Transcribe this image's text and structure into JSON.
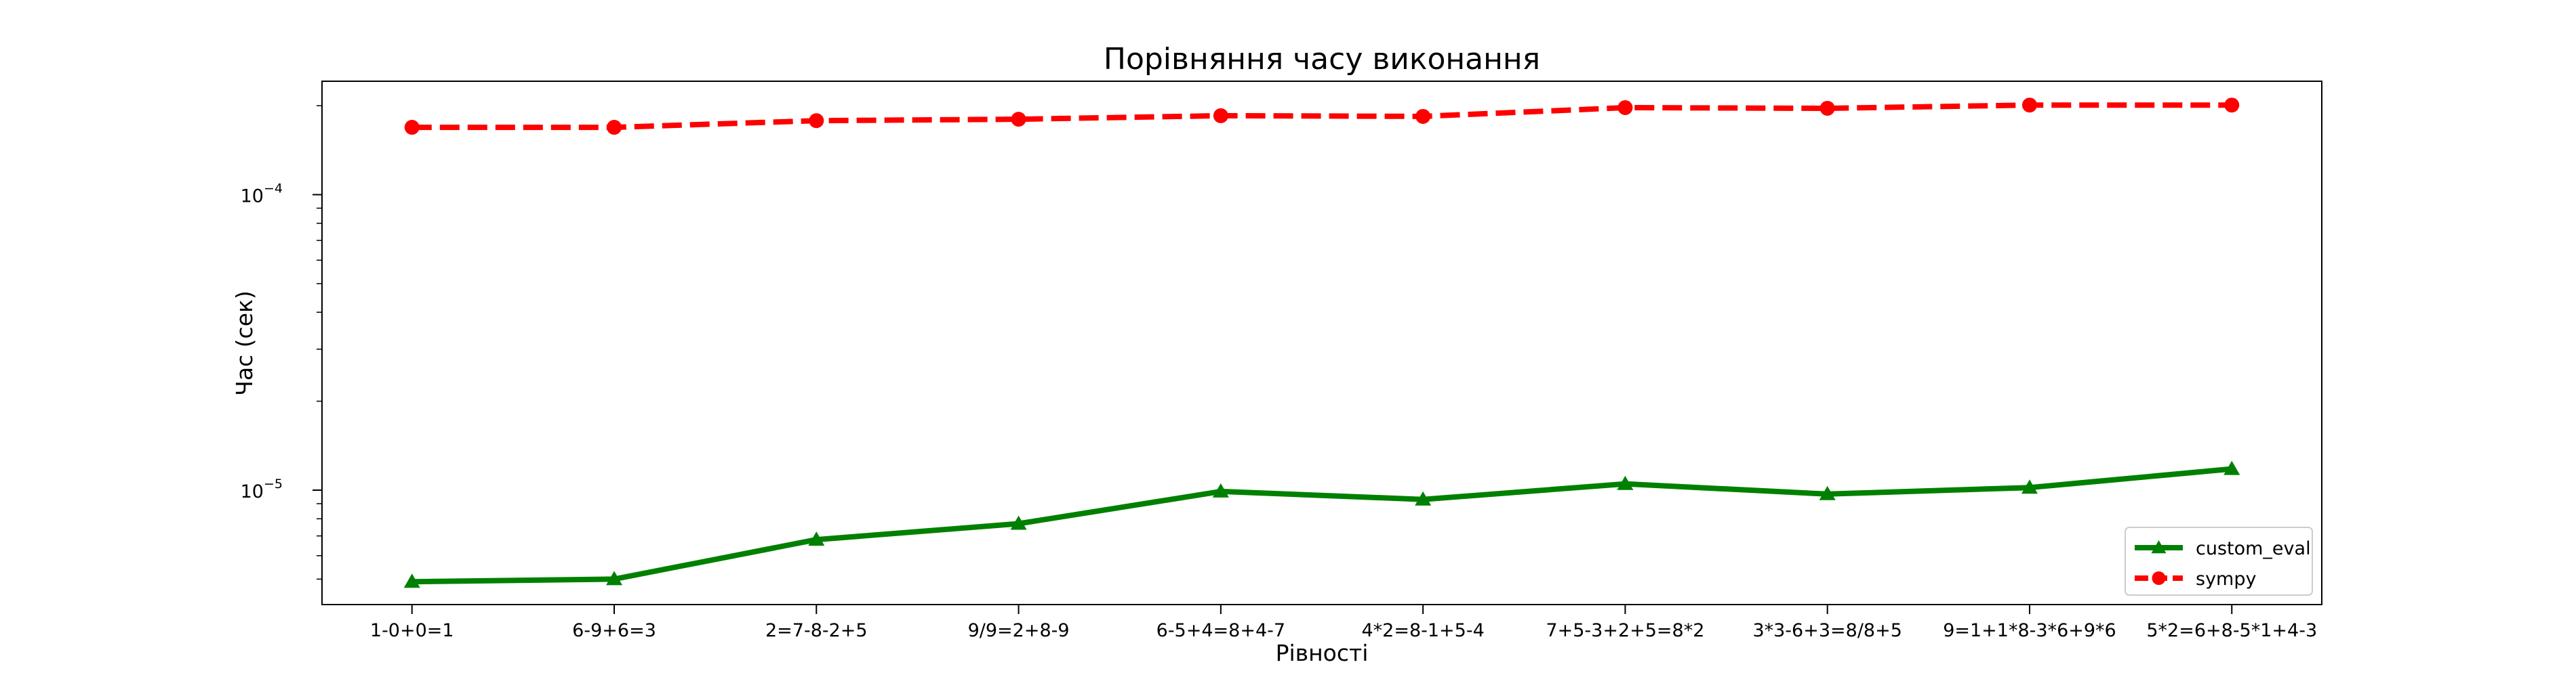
{
  "chart_data": {
    "type": "line",
    "title": "Порівняння часу виконання",
    "xlabel": "Рівності",
    "ylabel": "Час (сек)",
    "yscale": "log",
    "ylim": [
      4.1e-06,
      0.000242
    ],
    "grid": false,
    "legend_position": "bottom-right",
    "categories": [
      "1-0+0=1",
      "6-9+6=3",
      "2=7-8-2+5",
      "9/9=2+8-9",
      "6-5+4=8+4-7",
      "4*2=8-1+5-4",
      "7+5-3+2+5=8*2",
      "3*3-6+3=8/8+5",
      "9=1+1*8-3*6+9*6",
      "5*2=6+8-5*1+4-3"
    ],
    "y_ticks": [
      {
        "value": 1e-05,
        "base": "10",
        "exp": "−5"
      },
      {
        "value": 0.0001,
        "base": "10",
        "exp": "−4"
      }
    ],
    "series": [
      {
        "name": "custom_eval",
        "color": "#008000",
        "linestyle": "solid",
        "marker": "triangle",
        "values": [
          4.9e-06,
          5e-06,
          6.8e-06,
          7.7e-06,
          9.9e-06,
          9.3e-06,
          1.05e-05,
          9.7e-06,
          1.02e-05,
          1.18e-05
        ]
      },
      {
        "name": "sympy",
        "color": "#ff0000",
        "linestyle": "dashed",
        "marker": "circle",
        "values": [
          0.000169,
          0.000169,
          0.000178,
          0.00018,
          0.000185,
          0.000184,
          0.000197,
          0.000196,
          0.000201,
          0.000201
        ]
      }
    ]
  }
}
